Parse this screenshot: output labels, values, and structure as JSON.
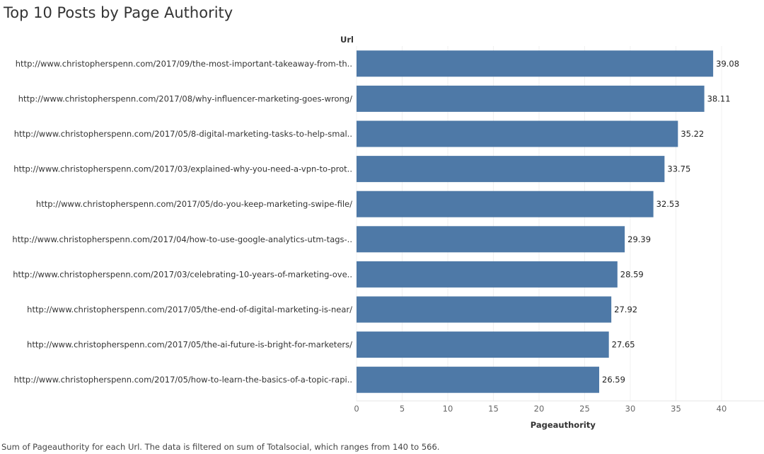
{
  "title": "Top 10 Posts by Page Authority",
  "caption": "Sum of Pageauthority for each Url. The data is filtered on sum of Totalsocial, which ranges from 140 to 566.",
  "chart_data": {
    "type": "bar",
    "orientation": "horizontal",
    "title": "Top 10 Posts by Page Authority",
    "row_header": "Url",
    "xlabel": "Pageauthority",
    "xlim": [
      0,
      44
    ],
    "xticks": [
      0,
      5,
      10,
      15,
      20,
      25,
      30,
      35,
      40
    ],
    "grid": true,
    "bar_color": "#4e79a7",
    "categories": [
      "http://www.christopherspenn.com/2017/09/the-most-important-takeaway-from-th..",
      "http://www.christopherspenn.com/2017/08/why-influencer-marketing-goes-wrong/",
      "http://www.christopherspenn.com/2017/05/8-digital-marketing-tasks-to-help-smal..",
      "http://www.christopherspenn.com/2017/03/explained-why-you-need-a-vpn-to-prot..",
      "http://www.christopherspenn.com/2017/05/do-you-keep-marketing-swipe-file/",
      "http://www.christopherspenn.com/2017/04/how-to-use-google-analytics-utm-tags-..",
      "http://www.christopherspenn.com/2017/03/celebrating-10-years-of-marketing-ove..",
      "http://www.christopherspenn.com/2017/05/the-end-of-digital-marketing-is-near/",
      "http://www.christopherspenn.com/2017/05/the-ai-future-is-bright-for-marketers/",
      "http://www.christopherspenn.com/2017/05/how-to-learn-the-basics-of-a-topic-rapi.."
    ],
    "values": [
      39.08,
      38.11,
      35.22,
      33.75,
      32.53,
      29.39,
      28.59,
      27.92,
      27.65,
      26.59
    ],
    "value_labels": [
      "39.08",
      "38.11",
      "35.22",
      "33.75",
      "32.53",
      "29.39",
      "28.59",
      "27.92",
      "27.65",
      "26.59"
    ]
  }
}
